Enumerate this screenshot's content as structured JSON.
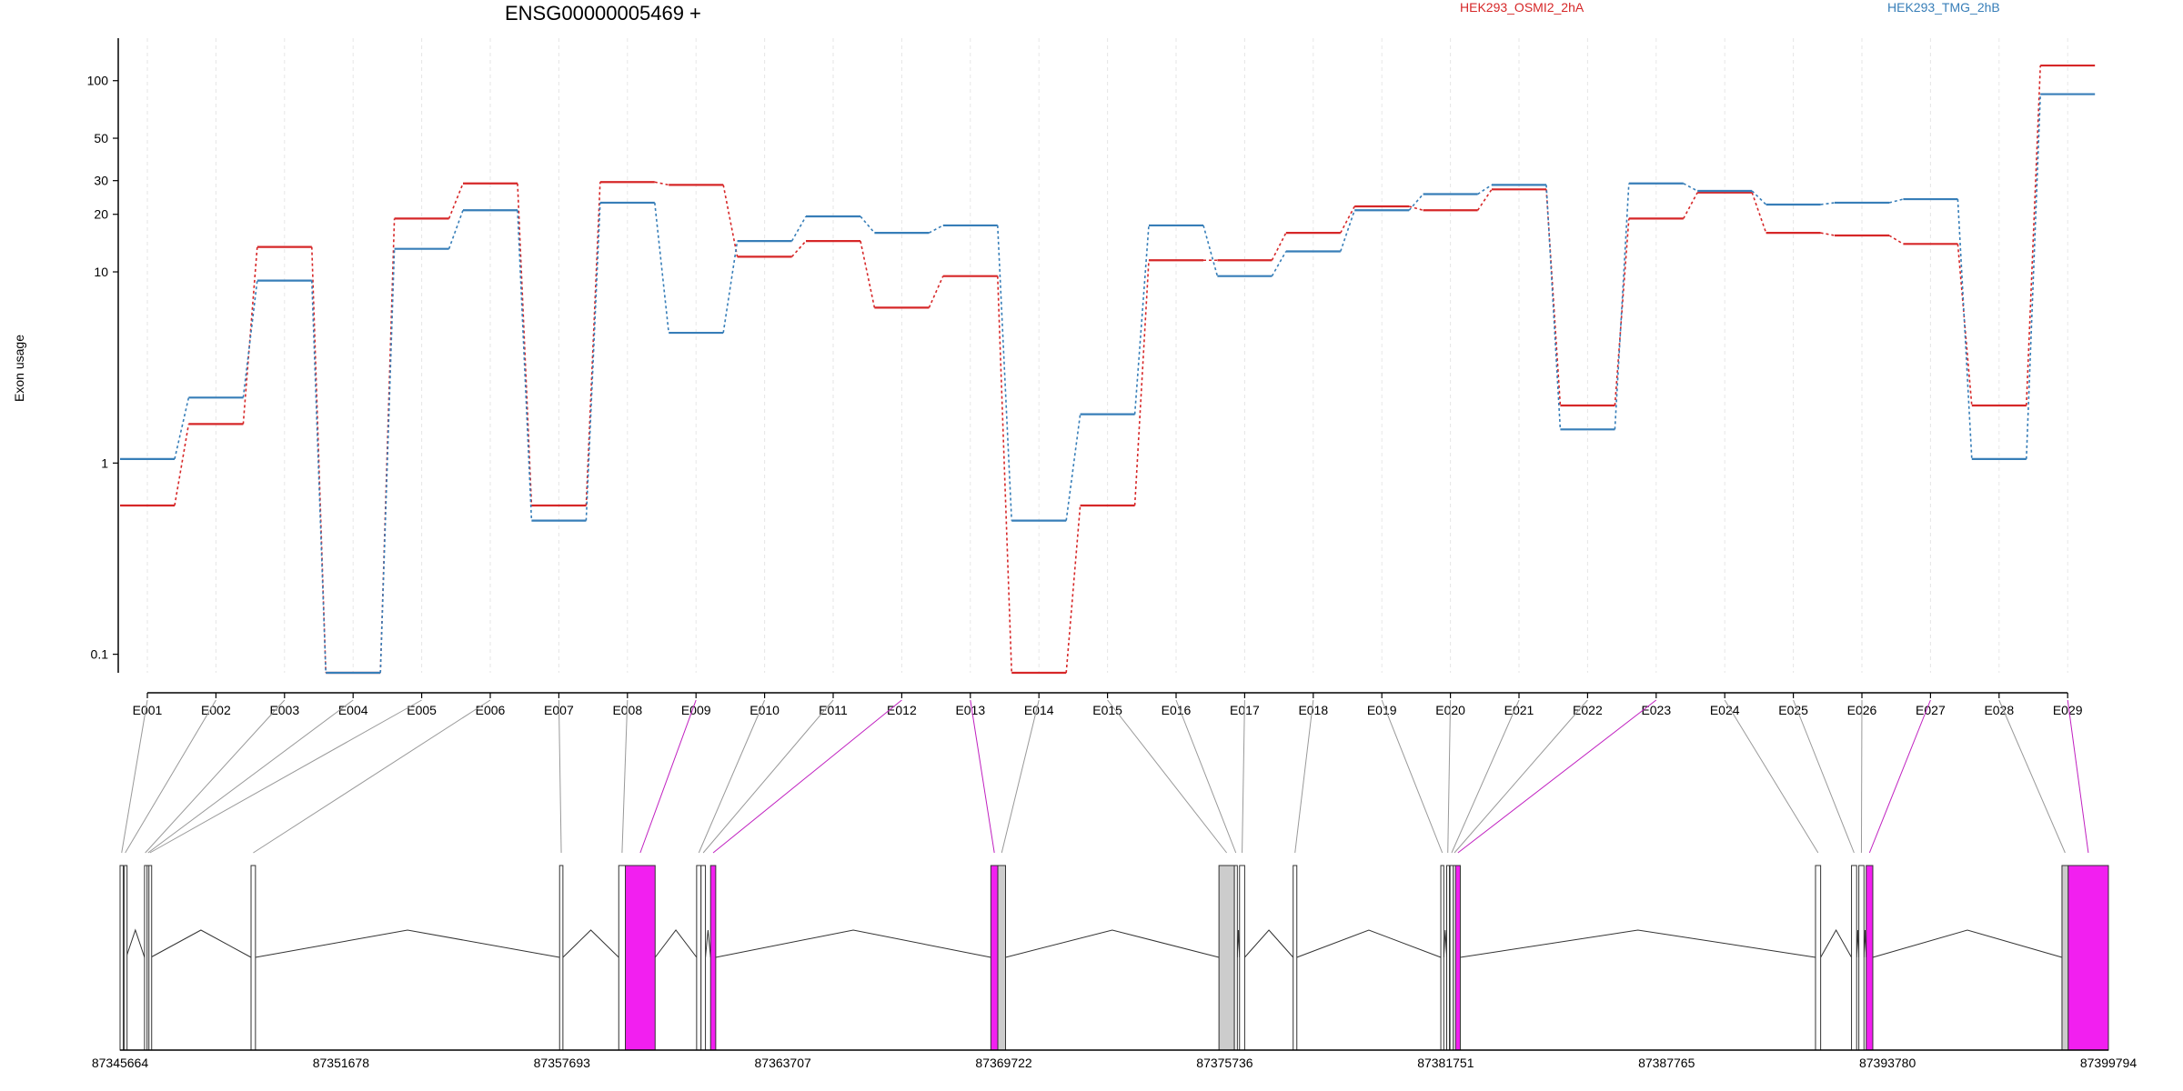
{
  "chart_data": {
    "type": "line",
    "title": "ENSG00000005469 +",
    "ylabel": "Exon usage",
    "yscale": "log",
    "ylim": [
      0.08,
      140
    ],
    "yticks": [
      {
        "value": 0.1,
        "label": "0.1"
      },
      {
        "value": 1,
        "label": "1"
      },
      {
        "value": 10,
        "label": "10"
      },
      {
        "value": 20,
        "label": "20"
      },
      {
        "value": 30,
        "label": "30"
      },
      {
        "value": 50,
        "label": "50"
      },
      {
        "value": 100,
        "label": "100"
      }
    ],
    "categories": [
      "E001",
      "E002",
      "E003",
      "E004",
      "E005",
      "E006",
      "E007",
      "E008",
      "E009",
      "E010",
      "E011",
      "E012",
      "E013",
      "E014",
      "E015",
      "E016",
      "E017",
      "E018",
      "E019",
      "E020",
      "E021",
      "E022",
      "E023",
      "E024",
      "E025",
      "E026",
      "E027",
      "E028",
      "E029"
    ],
    "series": [
      {
        "name": "HEK293_OSMI2_2hA",
        "color": "#d62728",
        "values": [
          0.6,
          1.6,
          13.5,
          0.08,
          19,
          29,
          0.6,
          29.5,
          28.5,
          12,
          14.5,
          6.5,
          9.5,
          0.08,
          0.6,
          11.5,
          11.5,
          16,
          22,
          21,
          27,
          2.0,
          19,
          26,
          16,
          15.5,
          14,
          2.0,
          120
        ]
      },
      {
        "name": "HEK293_TMG_2hB",
        "color": "#377eb8",
        "values": [
          1.05,
          2.2,
          9.0,
          0.08,
          13.2,
          21,
          0.5,
          23,
          4.8,
          14.5,
          19.5,
          16,
          17.5,
          0.5,
          1.8,
          17.5,
          9.5,
          12.8,
          21,
          25.5,
          28.5,
          1.5,
          29,
          26.5,
          22.5,
          23,
          24,
          1.05,
          85
        ]
      }
    ],
    "gene_model": {
      "coord_min": 87345664,
      "coord_max": 87399794,
      "coordinate_ticks": [
        87345664,
        87351678,
        87357693,
        87363707,
        87369722,
        87375736,
        87381751,
        87387765,
        87393780,
        87399794
      ],
      "exons": [
        {
          "id": "E001",
          "start": 87345664,
          "end": 87345750,
          "fill": "#ffffff"
        },
        {
          "id": "E002",
          "start": 87345780,
          "end": 87345830,
          "fill": "#ffffff"
        },
        {
          "id": "E003",
          "start": 87346330,
          "end": 87346370,
          "fill": "#ffffff"
        },
        {
          "id": "E004",
          "start": 87346400,
          "end": 87346450,
          "fill": "#ffffff"
        },
        {
          "id": "E005",
          "start": 87346450,
          "end": 87346500,
          "fill": "#ffffff"
        },
        {
          "id": "E006",
          "start": 87349230,
          "end": 87349350,
          "fill": "#ffffff"
        },
        {
          "id": "E007",
          "start": 87357630,
          "end": 87357720,
          "fill": "#ffffff"
        },
        {
          "id": "E008",
          "start": 87359240,
          "end": 87359420,
          "fill": "#ffffff"
        },
        {
          "id": "E009",
          "start": 87359420,
          "end": 87360230,
          "fill": "#f21ff0"
        },
        {
          "id": "E010",
          "start": 87361360,
          "end": 87361480,
          "fill": "#ffffff"
        },
        {
          "id": "E011",
          "start": 87361480,
          "end": 87361600,
          "fill": "#ffffff"
        },
        {
          "id": "E012",
          "start": 87361740,
          "end": 87361880,
          "fill": "#f21ff0"
        },
        {
          "id": "E013",
          "start": 87369370,
          "end": 87369560,
          "fill": "#f21ff0"
        },
        {
          "id": "E014",
          "start": 87369560,
          "end": 87369770,
          "fill": "#cccccc"
        },
        {
          "id": "E015",
          "start": 87375580,
          "end": 87376000,
          "fill": "#cccccc"
        },
        {
          "id": "E016",
          "start": 87376000,
          "end": 87376080,
          "fill": "#ffffff"
        },
        {
          "id": "E017",
          "start": 87376140,
          "end": 87376280,
          "fill": "#ffffff"
        },
        {
          "id": "E018",
          "start": 87377600,
          "end": 87377700,
          "fill": "#ffffff"
        },
        {
          "id": "E019",
          "start": 87381620,
          "end": 87381700,
          "fill": "#ffffff"
        },
        {
          "id": "E020",
          "start": 87381780,
          "end": 87381840,
          "fill": "#ffffff"
        },
        {
          "id": "E021",
          "start": 87381870,
          "end": 87381960,
          "fill": "#ffffff"
        },
        {
          "id": "E022",
          "start": 87381960,
          "end": 87382020,
          "fill": "#ffffff"
        },
        {
          "id": "E023",
          "start": 87382020,
          "end": 87382150,
          "fill": "#f21ff0"
        },
        {
          "id": "E024",
          "start": 87391820,
          "end": 87391960,
          "fill": "#ffffff"
        },
        {
          "id": "E025",
          "start": 87392800,
          "end": 87392940,
          "fill": "#ffffff"
        },
        {
          "id": "E026",
          "start": 87393000,
          "end": 87393140,
          "fill": "#ffffff"
        },
        {
          "id": "E027",
          "start": 87393200,
          "end": 87393380,
          "fill": "#f21ff0"
        },
        {
          "id": "E028",
          "start": 87398530,
          "end": 87398700,
          "fill": "#cccccc"
        },
        {
          "id": "E029",
          "start": 87398700,
          "end": 87399794,
          "fill": "#f21ff0"
        }
      ],
      "highlighted_link_color": "#c020c0",
      "link_color": "#999999"
    }
  }
}
